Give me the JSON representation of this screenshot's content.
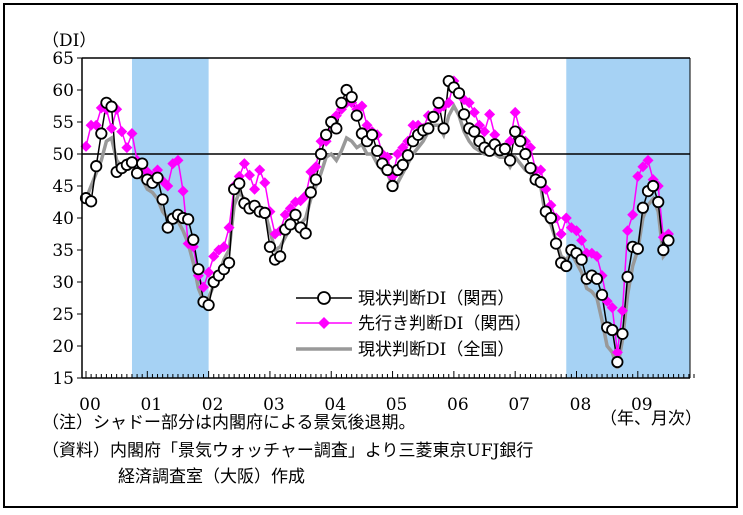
{
  "chart_data": {
    "type": "line",
    "ylabel": "（DI）",
    "xunit": "（年、月次）",
    "ylim": [
      15,
      65
    ],
    "yticks": [
      15,
      20,
      25,
      30,
      35,
      40,
      45,
      50,
      55,
      60,
      65
    ],
    "years": [
      "00",
      "01",
      "02",
      "03",
      "04",
      "05",
      "06",
      "07",
      "08",
      "09"
    ],
    "reference_line": 50,
    "recession_shading": [
      [
        "2000-10",
        "2002-01"
      ],
      [
        "2007-11",
        "2009-12"
      ]
    ],
    "legend_position": "bottom-center",
    "series": [
      {
        "name": "現状判断DI（関西）",
        "color": "#000000",
        "marker": "circle",
        "values": [
          43.1,
          42.6,
          48.1,
          53.2,
          58.0,
          57.4,
          47.2,
          47.8,
          48.3,
          48.7,
          47.0,
          48.5,
          46.0,
          45.5,
          46.3,
          42.9,
          38.5,
          39.9,
          40.5,
          40.0,
          39.8,
          36.6,
          32.0,
          26.9,
          26.4,
          30.0,
          31.0,
          32.0,
          33.0,
          44.5,
          45.4,
          42.3,
          41.5,
          41.9,
          41.0,
          40.8,
          35.5,
          33.5,
          34.0,
          38.2,
          39.0,
          40.5,
          38.5,
          37.6,
          44.0,
          46.0,
          50.0,
          53.0,
          55.0,
          54.0,
          58.0,
          60.0,
          58.9,
          56.0,
          53.2,
          52.0,
          53.0,
          50.5,
          48.5,
          47.5,
          45.0,
          47.5,
          48.3,
          49.8,
          52.0,
          53.0,
          53.7,
          54.0,
          55.8,
          58.0,
          54.0,
          61.4,
          60.4,
          59.5,
          56.2,
          54.0,
          53.5,
          52.0,
          51.0,
          50.5,
          51.5,
          50.6,
          50.8,
          49.0,
          53.5,
          52.0,
          50.0,
          47.8,
          46.0,
          45.6,
          41.0,
          40.0,
          36.0,
          33.0,
          32.5,
          35.0,
          34.5,
          33.5,
          30.5,
          31.0,
          30.5,
          28.0,
          22.9,
          22.5,
          17.5,
          21.9,
          30.8,
          35.5,
          35.2,
          41.6,
          44.2,
          45.0,
          42.5,
          35.0,
          36.5
        ]
      },
      {
        "name": "先行き判断DI（関西）",
        "color": "#ff00ff",
        "marker": "diamond",
        "values": [
          51.2,
          54.5,
          54.5,
          57.2,
          57.0,
          54.0,
          57.0,
          53.5,
          51.0,
          53.2,
          49.0,
          47.5,
          47.2,
          46.5,
          47.5,
          45.8,
          45.0,
          48.5,
          49.0,
          44.2,
          36.0,
          35.5,
          31.0,
          29.2,
          31.5,
          34.0,
          35.0,
          35.5,
          38.5,
          45.0,
          46.5,
          48.5,
          46.7,
          44.5,
          47.5,
          45.5,
          41.0,
          37.5,
          38.0,
          40.5,
          41.5,
          42.5,
          42.7,
          43.5,
          47.2,
          48.0,
          52.0,
          52.0,
          55.0,
          56.0,
          57.0,
          58.0,
          58.0,
          57.0,
          57.5,
          54.5,
          53.5,
          53.0,
          50.0,
          49.5,
          46.5,
          50.0,
          51.0,
          52.0,
          54.5,
          54.5,
          54.0,
          56.0,
          56.0,
          57.0,
          57.5,
          58.0,
          61.4,
          59.5,
          58.5,
          58.0,
          56.5,
          54.5,
          53.5,
          56.2,
          53.0,
          51.0,
          51.0,
          52.0,
          56.5,
          53.5,
          52.0,
          51.0,
          47.5,
          47.5,
          44.5,
          42.0,
          40.0,
          37.5,
          40.0,
          38.5,
          38.0,
          36.5,
          34.5,
          34.5,
          34.0,
          31.0,
          27.0,
          26.0,
          19.0,
          25.5,
          38.0,
          40.5,
          46.5,
          48.0,
          49.0,
          46.0,
          45.0,
          37.0,
          37.5
        ]
      },
      {
        "name": "現状判断DI（全国）",
        "color": "#999999",
        "marker": "none",
        "values": [
          43.0,
          45.0,
          47.0,
          49.0,
          52.0,
          52.5,
          49.0,
          48.0,
          49.0,
          48.0,
          47.0,
          46.0,
          44.5,
          44.0,
          43.0,
          41.0,
          40.0,
          39.5,
          39.5,
          38.0,
          36.0,
          33.0,
          29.0,
          27.0,
          27.5,
          29.5,
          31.0,
          33.5,
          35.0,
          42.0,
          44.0,
          43.0,
          42.0,
          42.0,
          41.0,
          41.0,
          38.0,
          35.0,
          35.5,
          37.0,
          38.5,
          39.0,
          39.0,
          40.0,
          43.0,
          45.0,
          47.0,
          49.5,
          50.0,
          49.0,
          50.5,
          52.5,
          52.0,
          51.0,
          51.5,
          50.0,
          50.0,
          48.5,
          47.5,
          47.0,
          45.0,
          45.5,
          47.0,
          48.5,
          50.0,
          51.0,
          52.0,
          53.5,
          54.5,
          54.5,
          53.0,
          56.0,
          57.5,
          56.0,
          53.5,
          52.0,
          51.0,
          50.5,
          50.0,
          50.0,
          50.0,
          49.5,
          49.5,
          48.0,
          49.5,
          48.5,
          47.5,
          47.0,
          45.5,
          45.0,
          40.0,
          39.0,
          36.5,
          34.0,
          33.5,
          34.5,
          33.0,
          31.5,
          29.0,
          28.5,
          27.5,
          24.0,
          20.0,
          19.0,
          16.5,
          21.0,
          28.0,
          32.5,
          35.0,
          40.0,
          42.0,
          43.0,
          41.0,
          34.0,
          35.0
        ]
      }
    ]
  },
  "notes": {
    "line1": "（注）シャドー部分は内閣府による景気後退期。",
    "line2": "（資料）内閣府「景気ウォッチャー調査」より三菱東京UFJ銀行",
    "line3": "経済調査室（大阪）作成"
  }
}
